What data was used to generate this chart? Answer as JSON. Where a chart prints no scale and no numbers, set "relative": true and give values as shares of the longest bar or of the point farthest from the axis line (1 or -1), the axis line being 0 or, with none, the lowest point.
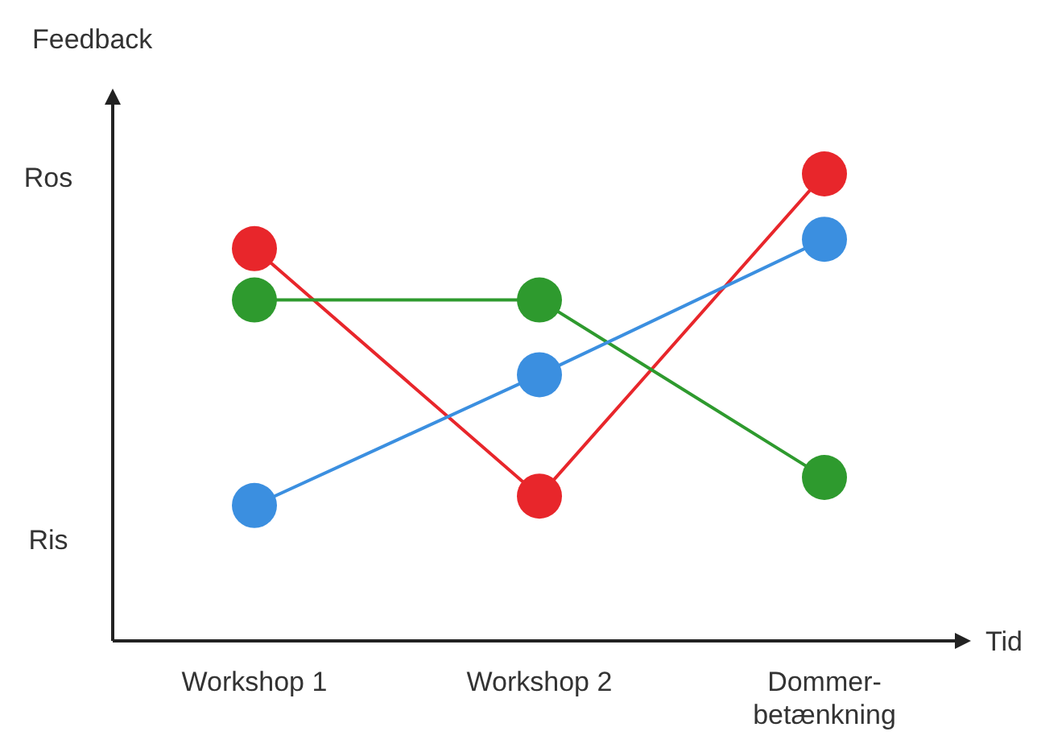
{
  "chart_data": {
    "type": "line",
    "xlabel": "Tid",
    "ylabel": "Feedback",
    "relative": true,
    "categories": [
      "Workshop 1",
      "Workshop 2",
      "Dommer-\nbetænkning"
    ],
    "annotations": [
      "Ros",
      "Ris"
    ],
    "marker": "circle",
    "line_style": "solid",
    "series": [
      {
        "color": "#e8262b",
        "values": [
          0.84,
          0.31,
          1.0
        ]
      },
      {
        "color": "#2e9a2e",
        "values": [
          0.73,
          0.73,
          0.35
        ]
      },
      {
        "color": "#3b8fe0",
        "values": [
          0.29,
          0.57,
          0.86
        ]
      }
    ]
  }
}
